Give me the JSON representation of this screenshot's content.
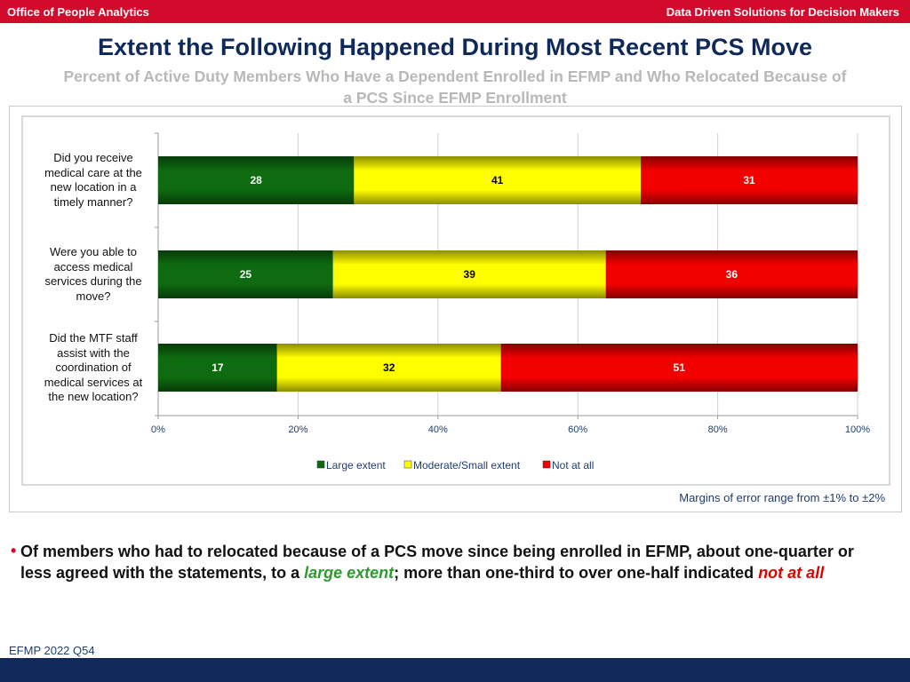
{
  "header": {
    "left_text": "Office of People Analytics",
    "right_text": "Data Driven Solutions for Decision Makers",
    "bar_color": "#d20a2c"
  },
  "title": "Extent the Following Happened During Most Recent PCS Move",
  "subtitle_line1": "Percent of Active Duty Members Who Have a Dependent Enrolled in EFMP and Who Relocated Because of",
  "subtitle_line2": "a PCS Since EFMP Enrollment",
  "chart_data": {
    "type": "bar",
    "orientation": "horizontal",
    "stacked": true,
    "categories": [
      "Did you receive medical care at the new location in a timely manner?",
      "Were you able to access medical services during the move?",
      "Did the MTF staff assist with the coordination of medical services at the new location?"
    ],
    "series": [
      {
        "name": "Large extent",
        "values": [
          28,
          25,
          17
        ],
        "color": "#0e6b10"
      },
      {
        "name": "Moderate/Small extent",
        "values": [
          41,
          39,
          32
        ],
        "color": "#ffff00"
      },
      {
        "name": "Not at all",
        "values": [
          31,
          36,
          51
        ],
        "color": "#f20000"
      }
    ],
    "xlim": [
      0,
      100
    ],
    "xticks": [
      "0%",
      "20%",
      "40%",
      "60%",
      "80%",
      "100%"
    ],
    "grid": true,
    "legend_position": "bottom"
  },
  "chart_labels": [
    [
      "Did you receive",
      "medical care at the",
      "new location in a",
      "timely manner?"
    ],
    [
      "Were you able to",
      "access medical",
      "services during the",
      "move?"
    ],
    [
      "Did the MTF staff",
      "assist with the",
      "coordination of",
      "medical services at",
      "the new location?"
    ]
  ],
  "margin_note": "Margins of error range from ±1% to ±2%",
  "bullet": {
    "part1": "Of members who had to relocated because of a PCS move since being enrolled in EFMP, about one-quarter or less agreed with the statements, to a ",
    "large_extent": "large extent",
    "part2": "; more than one-third to over one-half indicated ",
    "not_at_all": "not at all"
  },
  "footnote": "EFMP 2022 Q54",
  "colors": {
    "title": "#0f2a5a",
    "bottom_bar": "#0f2a5a",
    "accent_red": "#d20a2c"
  }
}
